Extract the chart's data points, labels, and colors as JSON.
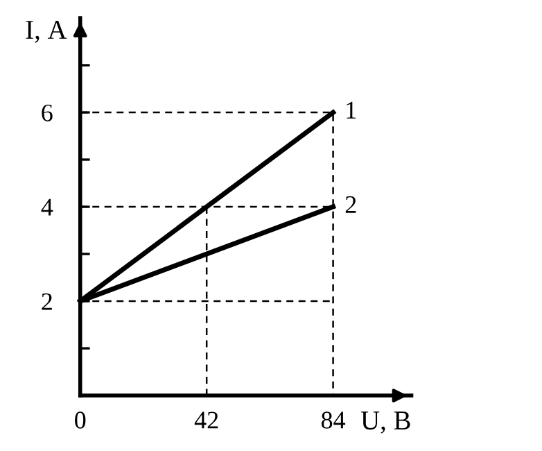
{
  "chart_data": {
    "type": "line",
    "xlabel": "U, В",
    "ylabel": "I, А",
    "xlim": [
      0,
      110
    ],
    "ylim": [
      0,
      8
    ],
    "xticks": [
      0,
      42,
      84
    ],
    "yticks": [
      {
        "value": 1,
        "label": null
      },
      2,
      {
        "value": 3,
        "label": null
      },
      4,
      {
        "value": 5,
        "label": null
      },
      6,
      {
        "value": 7,
        "label": null
      }
    ],
    "grid": false,
    "legend": false,
    "marker": "none",
    "series": [
      {
        "name": "1",
        "color": "#000000",
        "x": [
          0,
          84
        ],
        "values": [
          2,
          6
        ],
        "line_style": "solid"
      },
      {
        "name": "2",
        "color": "#000000",
        "x": [
          0,
          84
        ],
        "values": [
          2,
          4
        ],
        "line_style": "solid"
      },
      {
        "color": "#000000",
        "x": [
          0,
          84,
          84
        ],
        "values": [
          6,
          6,
          0
        ],
        "line_style": "dashed"
      },
      {
        "color": "#000000",
        "x": [
          0,
          84
        ],
        "values": [
          4,
          4
        ],
        "line_style": "dashed"
      },
      {
        "color": "#000000",
        "x": [
          42,
          42
        ],
        "values": [
          4,
          0
        ],
        "line_style": "dashed"
      },
      {
        "color": "#000000",
        "x": [
          0,
          84
        ],
        "values": [
          2,
          2
        ],
        "line_style": "dashed"
      }
    ]
  }
}
